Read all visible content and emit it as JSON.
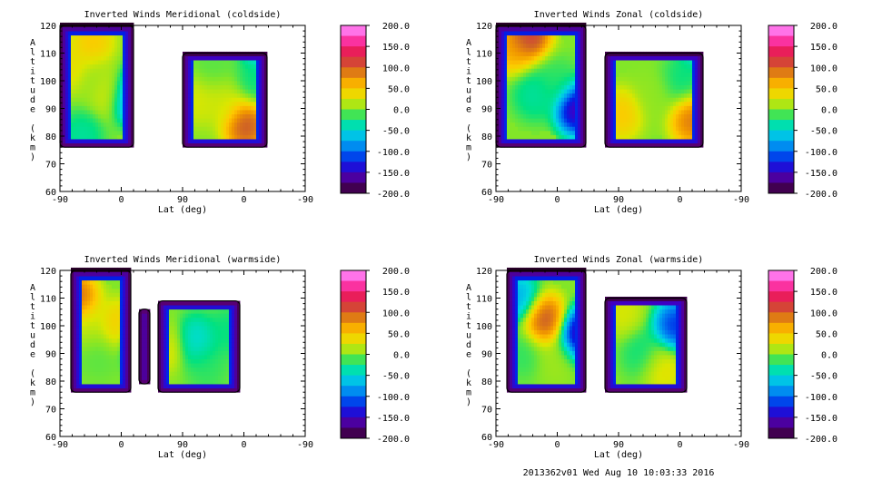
{
  "footer": "2013362v01 Wed Aug 10 10:03:33 2016",
  "chart_data": [
    {
      "type": "heatmap",
      "title": "Inverted Winds Meridional (coldside)",
      "xlabel": "Lat (deg)",
      "ylabel": "Altitude (km)",
      "xticks": [
        "-90",
        "0",
        "90",
        "0",
        "-90"
      ],
      "yticks": [
        60,
        70,
        80,
        90,
        100,
        110,
        120
      ],
      "ylim": [
        60,
        120
      ],
      "colorbar": {
        "min": -200,
        "max": 200,
        "ticks": [
          "200.0",
          "150.0",
          "100.0",
          "50.0",
          "0.0",
          "-50.0",
          "-100.0",
          "-150.0",
          "-200.0"
        ]
      },
      "regions": [
        {
          "x": [
            -90,
            45
          ],
          "alt": [
            76,
            120
          ]
        },
        {
          "x": [
            135,
            290
          ],
          "alt": [
            76,
            110
          ]
        }
      ],
      "features": [
        {
          "x": -75,
          "alt": 105,
          "v": 40
        },
        {
          "x": -50,
          "alt": 80,
          "v": -40
        },
        {
          "x": -30,
          "alt": 114,
          "v": 60
        },
        {
          "x": 10,
          "alt": 96,
          "v": 50
        },
        {
          "x": -20,
          "alt": 100,
          "v": 5
        },
        {
          "x": 40,
          "alt": 95,
          "v": -190
        },
        {
          "x": 160,
          "alt": 93,
          "v": 30
        },
        {
          "x": 210,
          "alt": 92,
          "v": 25
        },
        {
          "x": 250,
          "alt": 84,
          "v": 130
        },
        {
          "x": 270,
          "alt": 100,
          "v": -30
        },
        {
          "x": 280,
          "alt": 115,
          "v": -120
        },
        {
          "x": 190,
          "alt": 105,
          "v": -10
        }
      ]
    },
    {
      "type": "heatmap",
      "title": "Inverted Winds Zonal (coldside)",
      "xlabel": "Lat (deg)",
      "ylabel": "Altitude (km)",
      "xticks": [
        "-90",
        "0",
        "90",
        "0",
        "-90"
      ],
      "yticks": [
        60,
        70,
        80,
        90,
        100,
        110,
        120
      ],
      "ylim": [
        60,
        120
      ],
      "colorbar": {
        "min": -200,
        "max": 200,
        "ticks": [
          "200.0",
          "150.0",
          "100.0",
          "50.0",
          "0.0",
          "-50.0",
          "-100.0",
          "-150.0",
          "-200.0"
        ]
      },
      "regions": [
        {
          "x": [
            -90,
            75
          ],
          "alt": [
            76,
            120
          ]
        },
        {
          "x": [
            110,
            290
          ],
          "alt": [
            76,
            110
          ]
        }
      ],
      "features": [
        {
          "x": -30,
          "alt": 117,
          "v": 150
        },
        {
          "x": -60,
          "alt": 112,
          "v": 80
        },
        {
          "x": -20,
          "alt": 95,
          "v": -40
        },
        {
          "x": 20,
          "alt": 100,
          "v": -20
        },
        {
          "x": 60,
          "alt": 90,
          "v": -200
        },
        {
          "x": 140,
          "alt": 88,
          "v": 60
        },
        {
          "x": 200,
          "alt": 95,
          "v": 5
        },
        {
          "x": 270,
          "alt": 86,
          "v": 110
        },
        {
          "x": 250,
          "alt": 100,
          "v": -30
        },
        {
          "x": 285,
          "alt": 115,
          "v": -110
        }
      ]
    },
    {
      "type": "heatmap",
      "title": "Inverted Winds Meridional (warmside)",
      "xlabel": "Lat (deg)",
      "ylabel": "Altitude (km)",
      "xticks": [
        "-90",
        "0",
        "90",
        "0",
        "-90"
      ],
      "yticks": [
        60,
        70,
        80,
        90,
        100,
        110,
        120
      ],
      "ylim": [
        60,
        120
      ],
      "colorbar": {
        "min": -200,
        "max": 200,
        "ticks": [
          "200.0",
          "150.0",
          "100.0",
          "50.0",
          "0.0",
          "-50.0",
          "-100.0",
          "-150.0",
          "-200.0"
        ]
      },
      "regions": [
        {
          "x": [
            -70,
            40
          ],
          "alt": [
            76,
            120
          ]
        },
        {
          "x": [
            55,
            75
          ],
          "alt": [
            79,
            106
          ]
        },
        {
          "x": [
            90,
            240
          ],
          "alt": [
            76,
            109
          ]
        }
      ],
      "features": [
        {
          "x": -60,
          "alt": 110,
          "v": 120
        },
        {
          "x": -40,
          "alt": 100,
          "v": 20
        },
        {
          "x": 20,
          "alt": 100,
          "v": 60
        },
        {
          "x": -20,
          "alt": 90,
          "v": -10
        },
        {
          "x": 65,
          "alt": 95,
          "v": -180
        },
        {
          "x": 100,
          "alt": 93,
          "v": 50
        },
        {
          "x": 160,
          "alt": 95,
          "v": -60
        },
        {
          "x": 220,
          "alt": 98,
          "v": -30
        },
        {
          "x": 180,
          "alt": 85,
          "v": -20
        }
      ]
    },
    {
      "type": "heatmap",
      "title": "Inverted Winds Zonal (warmside)",
      "xlabel": "Lat (deg)",
      "ylabel": "Altitude (km)",
      "xticks": [
        "-90",
        "0",
        "90",
        "0",
        "-90"
      ],
      "yticks": [
        60,
        70,
        80,
        90,
        100,
        110,
        120
      ],
      "ylim": [
        60,
        120
      ],
      "colorbar": {
        "min": -200,
        "max": 200,
        "ticks": [
          "200.0",
          "150.0",
          "100.0",
          "50.0",
          "0.0",
          "-50.0",
          "-100.0",
          "-150.0",
          "-200.0"
        ]
      },
      "regions": [
        {
          "x": [
            -70,
            75
          ],
          "alt": [
            76,
            120
          ]
        },
        {
          "x": [
            110,
            260
          ],
          "alt": [
            76,
            110
          ]
        }
      ],
      "features": [
        {
          "x": 0,
          "alt": 102,
          "v": 130
        },
        {
          "x": -50,
          "alt": 110,
          "v": -90
        },
        {
          "x": -40,
          "alt": 90,
          "v": -20
        },
        {
          "x": 20,
          "alt": 88,
          "v": 10
        },
        {
          "x": 65,
          "alt": 97,
          "v": -200
        },
        {
          "x": 140,
          "alt": 105,
          "v": 30
        },
        {
          "x": 180,
          "alt": 90,
          "v": -30
        },
        {
          "x": 215,
          "alt": 85,
          "v": 40
        },
        {
          "x": 240,
          "alt": 100,
          "v": -150
        }
      ]
    }
  ]
}
